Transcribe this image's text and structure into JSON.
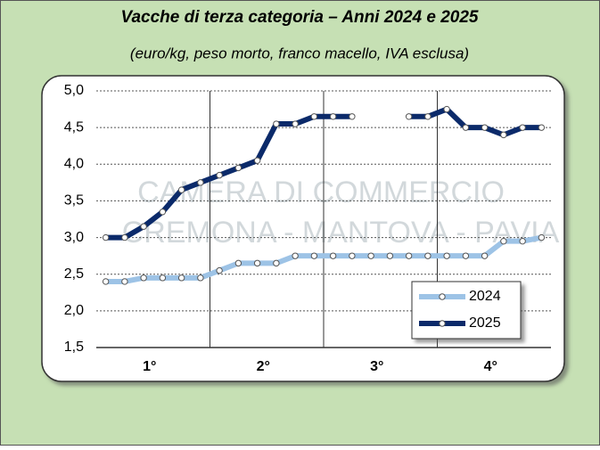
{
  "chart_data": {
    "type": "line",
    "title": "Vacche di terza categoria – Anni 2024 e 2025",
    "subtitle": "(euro/kg, peso morto, franco macello, IVA esclusa)",
    "watermark": [
      "CAMERA DI COMMERCIO",
      "CREMONA - MANTOVA - PAVIA"
    ],
    "quarters": [
      "1°",
      "2°",
      "3°",
      "4°"
    ],
    "series": [
      {
        "name": "2024",
        "color": "#9dc3e6",
        "values": [
          2.4,
          2.4,
          2.45,
          2.45,
          2.45,
          2.45,
          2.55,
          2.65,
          2.65,
          2.65,
          2.75,
          2.75,
          2.75,
          2.75,
          2.75,
          2.75,
          2.75,
          2.75,
          2.75,
          2.75,
          2.75,
          2.95,
          2.95,
          3.0
        ]
      },
      {
        "name": "2025",
        "color": "#0b2a6a",
        "values": [
          3.0,
          3.0,
          3.15,
          3.35,
          3.65,
          3.75,
          3.85,
          3.95,
          4.05,
          4.55,
          4.55,
          4.65,
          4.65,
          4.65,
          null,
          null,
          4.65,
          4.65,
          4.75,
          4.5,
          4.5,
          4.4,
          4.5,
          4.5
        ]
      }
    ],
    "ylim": [
      1.5,
      5.0
    ],
    "yticks": [
      {
        "value": 1.5,
        "label": "1,5"
      },
      {
        "value": 2.0,
        "label": "2,0"
      },
      {
        "value": 2.5,
        "label": "2,5"
      },
      {
        "value": 3.0,
        "label": "3,0"
      },
      {
        "value": 3.5,
        "label": "3,5"
      },
      {
        "value": 4.0,
        "label": "4,0"
      },
      {
        "value": 4.5,
        "label": "4,5"
      },
      {
        "value": 5.0,
        "label": "5,0"
      }
    ],
    "grid": true,
    "legend": "lower right"
  }
}
